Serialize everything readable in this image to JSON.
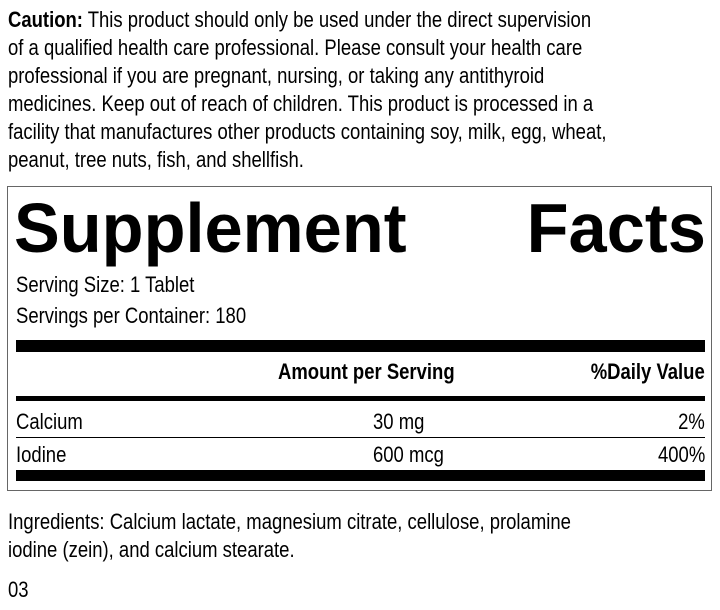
{
  "caution": {
    "label": "Caution:",
    "lines": [
      " This product should only be used under the direct supervision",
      "of a qualified health care professional. Please consult your health care",
      "professional if you are pregnant, nursing, or taking any antithyroid",
      "medicines. Keep out of reach of children. This product is processed in a",
      "facility that manufactures other products containing soy, milk, egg, wheat,",
      "peanut, tree nuts, fish, and shellfish."
    ]
  },
  "facts": {
    "title_left": "Supplement",
    "title_right": "Facts",
    "serving_size": "Serving Size: 1 Tablet",
    "servings_per_container": "Servings per Container: 180",
    "header_amount": "Amount per Serving",
    "header_dv": "%Daily Value",
    "rows": [
      {
        "name": "Calcium",
        "amount": "30 mg",
        "dv": "2%"
      },
      {
        "name": "Iodine",
        "amount": "600 mcg",
        "dv": "400%"
      }
    ]
  },
  "ingredients": {
    "lines": [
      "Ingredients: Calcium lactate, magnesium citrate, cellulose, prolamine",
      "iodine (zein), and calcium stearate."
    ]
  },
  "code": "03"
}
